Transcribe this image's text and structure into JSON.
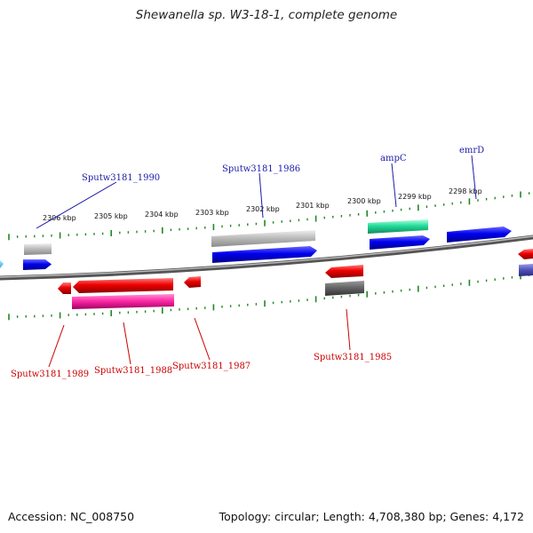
{
  "title": "Shewanella sp. W3-18-1, complete genome",
  "accession": "Accession: NC_008750",
  "topology": "Topology: circular; Length: 4,708,380 bp; Genes: 4,172",
  "kbp_labels": [
    "2306 kbp",
    "2305 kbp",
    "2304 kbp",
    "2303 kbp",
    "2302 kbp",
    "2301 kbp",
    "2300 kbp",
    "2299 kbp",
    "2298 kbp"
  ],
  "gene_labels_top": [
    "Sputw3181_1990",
    "Sputw3181_1986",
    "ampC",
    "emrD"
  ],
  "gene_labels_bottom": [
    "Sputw3181_1989",
    "Sputw3181_1988",
    "Sputw3181_1987",
    "Sputw3181_1985"
  ],
  "colors": {
    "forward_cds": "#0000ee",
    "reverse_cds": "#ee0000",
    "trna": "#ff2aa8",
    "rrna": "#22dd99",
    "pseudo_light": "#bbbbbb",
    "pseudo_dark": "#666666",
    "tick": "#228822",
    "backbone": "#888888",
    "label_top": "#1a1aaa",
    "label_bottom": "#cc0000"
  }
}
